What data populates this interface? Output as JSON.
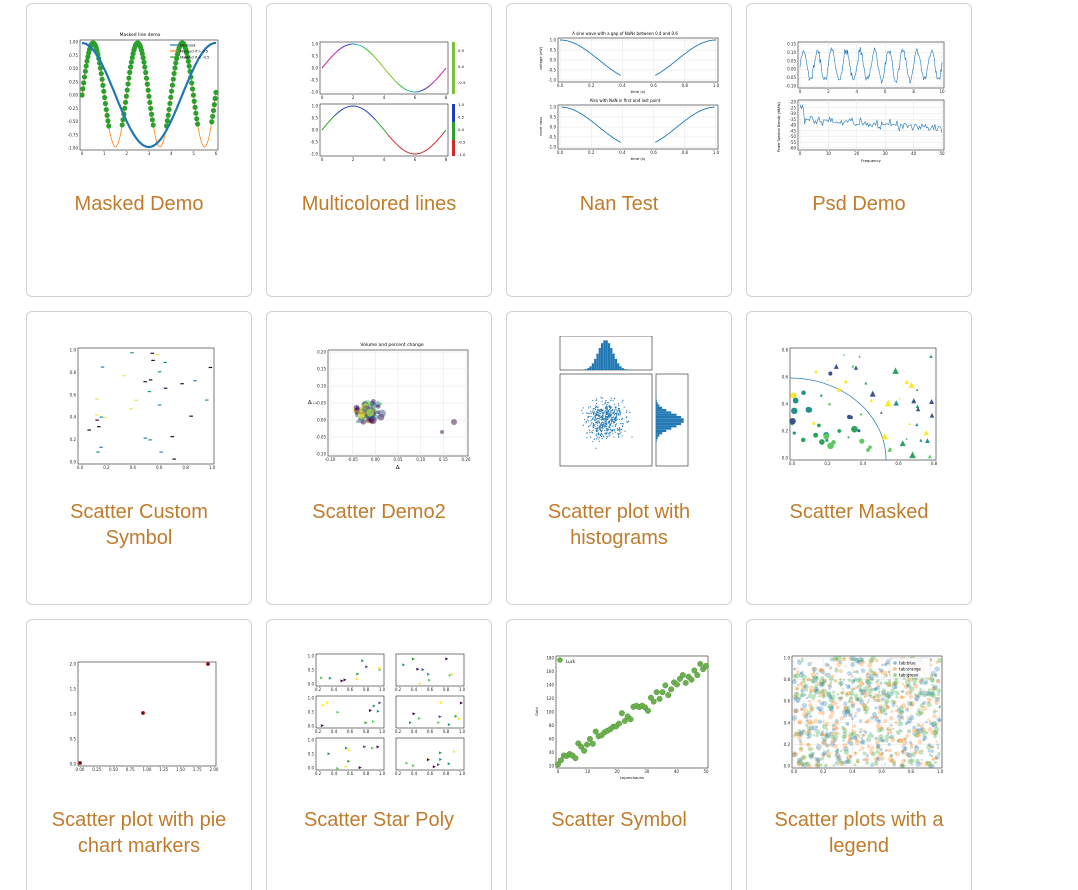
{
  "gallery": {
    "cards": [
      {
        "label": "Masked Demo",
        "thumb": {
          "title": "Masked line demo",
          "legend": [
            "No mask",
            "Masked if > 0.5",
            "Masked if < -0.5"
          ],
          "yticks": [
            "1.00",
            "0.75",
            "0.50",
            "0.25",
            "0.00",
            "-0.25",
            "-0.50",
            "-0.75",
            "-1.00"
          ],
          "xticks": [
            "0",
            "1",
            "2",
            "3",
            "4",
            "5",
            "6"
          ],
          "colors": {
            "no_mask": "#1f77b4",
            "masked_gt": "#ff7f0e",
            "masked_lt": "#2ca02c"
          }
        }
      },
      {
        "label": "Multicolored lines",
        "thumb": {
          "yticks": [
            "1.0",
            "0.5",
            "0.0",
            "-0.5",
            "-1.0"
          ],
          "xticks": [
            "0",
            "2",
            "4",
            "6",
            "8"
          ],
          "cbar1": [
            "0.5",
            "0.0",
            "-0.5"
          ],
          "cbar2": [
            "1.0",
            "0.5",
            "0.0",
            "-0.5",
            "-1.0"
          ]
        }
      },
      {
        "label": "Nan Test",
        "thumb": {
          "title1": "A sine wave with a gap of NaNs between 0.4 and 0.6",
          "title2": "Also with NaN in first and last point",
          "ylabel1": "voltage (mV)",
          "ylabel2": "more nans",
          "xlabel": "time (s)",
          "yticks": [
            "1.0",
            "0.5",
            "0.0",
            "-0.5",
            "-1.0"
          ],
          "xticks": [
            "0.0",
            "0.2",
            "0.4",
            "0.6",
            "0.8",
            "1.0"
          ]
        }
      },
      {
        "label": "Psd Demo",
        "thumb": {
          "yticks1": [
            "0.15",
            "0.10",
            "0.05",
            "0.00",
            "-0.05",
            "-0.10"
          ],
          "xticks1": [
            "0",
            "2",
            "4",
            "6",
            "8",
            "10"
          ],
          "yticks2": [
            "-20",
            "-25",
            "-30",
            "-35",
            "-40",
            "-45",
            "-50",
            "-55",
            "-60"
          ],
          "xticks2": [
            "0",
            "10",
            "20",
            "30",
            "40",
            "50"
          ],
          "ylabel2": "Power Spectral Density (dB/Hz)",
          "xlabel2": "Frequency"
        }
      },
      {
        "label": "Scatter Custom Symbol",
        "thumb": {
          "yticks": [
            "1.0",
            "0.8",
            "0.6",
            "0.4",
            "0.2",
            "0.0"
          ],
          "xticks": [
            "0.0",
            "0.2",
            "0.4",
            "0.6",
            "0.8",
            "1.0"
          ]
        }
      },
      {
        "label": "Scatter Demo2",
        "thumb": {
          "title": "Volume and percent change",
          "ylabel": "Δᵢ₊₁",
          "xlabel": "Δᵢ",
          "yticks": [
            "0.20",
            "0.15",
            "0.10",
            "0.05",
            "0.00",
            "-0.05",
            "-0.10"
          ],
          "xticks": [
            "-0.10",
            "-0.05",
            "0.00",
            "0.05",
            "0.10",
            "0.15",
            "0.20"
          ]
        }
      },
      {
        "label": "Scatter plot with histograms",
        "thumb": {
          "color": "#1f77b4"
        }
      },
      {
        "label": "Scatter Masked",
        "thumb": {
          "yticks": [
            "0.8",
            "0.6",
            "0.4",
            "0.2",
            "0.0"
          ],
          "xticks": [
            "0.0",
            "0.2",
            "0.4",
            "0.6",
            "0.8"
          ]
        }
      },
      {
        "label": "Scatter plot with pie chart markers",
        "thumb": {
          "yticks": [
            "2.0",
            "1.5",
            "1.0",
            "0.5",
            "0.0"
          ],
          "xticks": [
            "0.00",
            "0.25",
            "0.50",
            "0.75",
            "1.00",
            "1.25",
            "1.50",
            "1.75",
            "2.00"
          ]
        }
      },
      {
        "label": "Scatter Star Poly",
        "thumb": {
          "yticks": [
            "1.0",
            "0.5",
            "0.0"
          ],
          "xticks": [
            "0.2",
            "0.4",
            "0.6",
            "0.8",
            "1.0"
          ]
        }
      },
      {
        "label": "Scatter Symbol",
        "thumb": {
          "legend": "Luck",
          "ylabel": "Gold",
          "xlabel": "Leprechauns",
          "yticks": [
            "180",
            "160",
            "140",
            "120",
            "100",
            "80",
            "60",
            "40",
            "20"
          ],
          "xticks": [
            "0",
            "10",
            "20",
            "30",
            "40",
            "50"
          ]
        }
      },
      {
        "label": "Scatter plots with a legend",
        "thumb": {
          "legend": [
            "tab:blue",
            "tab:orange",
            "tab:green"
          ],
          "yticks": [
            "1.0",
            "0.8",
            "0.6",
            "0.4",
            "0.2",
            "0.0"
          ],
          "xticks": [
            "0.0",
            "0.2",
            "0.4",
            "0.6",
            "0.8",
            "1.0"
          ]
        }
      }
    ]
  },
  "colors": {
    "label": "#c07b2b",
    "border": "#d2d2d2"
  }
}
